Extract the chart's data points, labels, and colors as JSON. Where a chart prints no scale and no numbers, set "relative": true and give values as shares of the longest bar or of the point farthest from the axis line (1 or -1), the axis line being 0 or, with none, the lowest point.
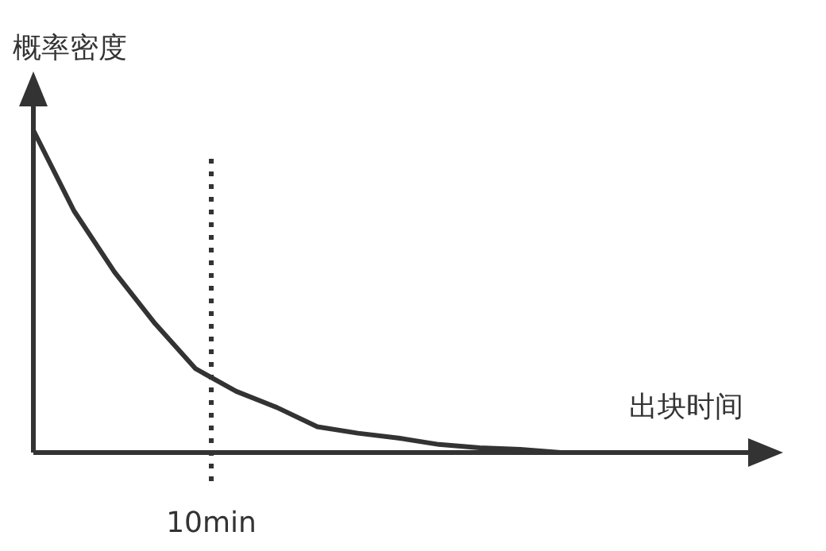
{
  "chart_data": {
    "type": "line",
    "relative": true,
    "xlabel": "出块时间",
    "ylabel": "概率密度",
    "categories": [
      null,
      null,
      null,
      null,
      null,
      null,
      null,
      null,
      null,
      null,
      null,
      null,
      null,
      null
    ],
    "series": [
      {
        "color": "#333333",
        "values": [
          1,
          0.75,
          0.56,
          0.4,
          0.26,
          0.19,
          0.14,
          0.08,
          0.06,
          0.045,
          0.025,
          0.015,
          0.01,
          0
        ]
      }
    ],
    "annotations": [
      "10min"
    ]
  }
}
